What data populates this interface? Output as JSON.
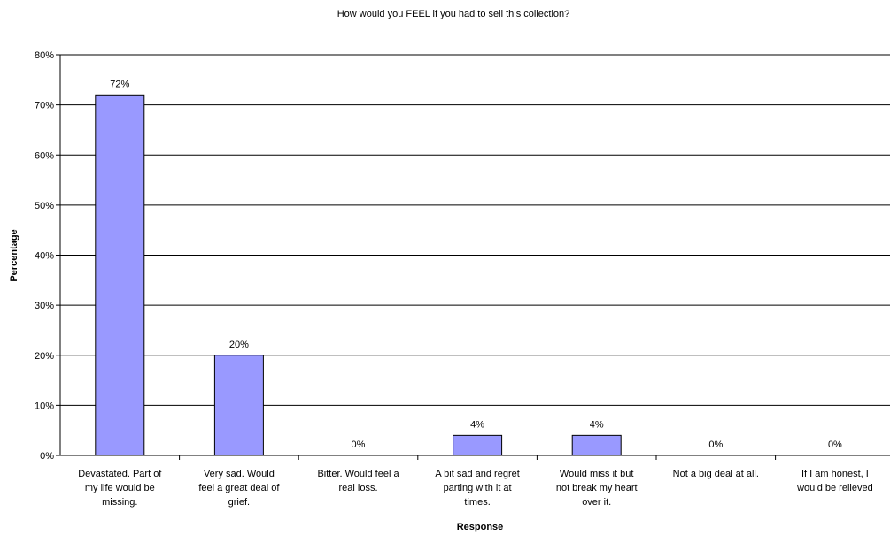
{
  "chart_data": {
    "type": "bar",
    "title": "How would you FEEL if you had to sell this collection?",
    "xlabel": "Response",
    "ylabel": "Percentage",
    "ylim": [
      0,
      80
    ],
    "y_ticks": [
      "0%",
      "10%",
      "20%",
      "30%",
      "40%",
      "50%",
      "60%",
      "70%",
      "80%"
    ],
    "grid": true,
    "legend": "none",
    "bar_color": "#9999ff",
    "categories": [
      [
        "Devastated. Part of",
        "my life would be",
        "missing."
      ],
      [
        "Very sad.  Would",
        "feel a great deal of",
        "grief."
      ],
      [
        "Bitter.  Would feel a",
        "real loss."
      ],
      [
        "A bit sad and regret",
        "parting with it at",
        "times."
      ],
      [
        "Would miss it but",
        "not break my heart",
        "over it."
      ],
      [
        "Not a big deal at all."
      ],
      [
        "If I am honest, I",
        "would be relieved"
      ]
    ],
    "values": [
      72,
      20,
      0,
      4,
      4,
      0,
      0
    ],
    "data_labels": [
      "72%",
      "20%",
      "0%",
      "4%",
      "4%",
      "0%",
      "0%"
    ]
  }
}
